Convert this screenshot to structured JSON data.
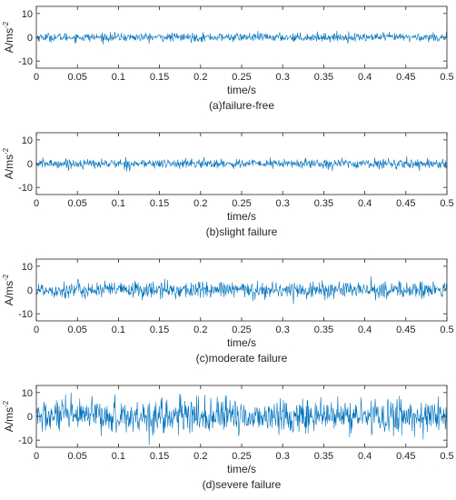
{
  "chart_data": [
    {
      "type": "line",
      "caption": "(a)failure-free",
      "xlabel": "time/s",
      "ylabel": "A/ms",
      "ylabel_exponent": "-2",
      "xlim": [
        0,
        0.5
      ],
      "ylim": [
        -13,
        13
      ],
      "xticks": [
        "0",
        "0.05",
        "0.1",
        "0.15",
        "0.2",
        "0.25",
        "0.3",
        "0.35",
        "0.4",
        "0.45",
        "0.5"
      ],
      "yticks": [
        "10",
        "0",
        "-10"
      ],
      "series": [
        {
          "amplitude_std": 0.9,
          "peak": 3,
          "color": "#0072BD"
        }
      ]
    },
    {
      "type": "line",
      "caption": "(b)slight failure",
      "xlabel": "time/s",
      "ylabel": "A/ms",
      "ylabel_exponent": "-2",
      "xlim": [
        0,
        0.5
      ],
      "ylim": [
        -13,
        13
      ],
      "xticks": [
        "0",
        "0.05",
        "0.1",
        "0.15",
        "0.2",
        "0.25",
        "0.3",
        "0.35",
        "0.4",
        "0.45",
        "0.5"
      ],
      "yticks": [
        "10",
        "0",
        "-10"
      ],
      "series": [
        {
          "amplitude_std": 1.0,
          "peak": 4,
          "color": "#0072BD"
        }
      ]
    },
    {
      "type": "line",
      "caption": "(c)moderate failure",
      "xlabel": "time/s",
      "ylabel": "A/ms",
      "ylabel_exponent": "-2",
      "xlim": [
        0,
        0.5
      ],
      "ylim": [
        -13,
        13
      ],
      "xticks": [
        "0",
        "0.05",
        "0.1",
        "0.15",
        "0.2",
        "0.25",
        "0.3",
        "0.35",
        "0.4",
        "0.45",
        "0.5"
      ],
      "yticks": [
        "10",
        "0",
        "-10"
      ],
      "series": [
        {
          "amplitude_std": 1.8,
          "peak": 7,
          "color": "#0072BD"
        }
      ]
    },
    {
      "type": "line",
      "caption": "(d)severe failure",
      "xlabel": "time/s",
      "ylabel": "A/ms",
      "ylabel_exponent": "-2",
      "xlim": [
        0,
        0.5
      ],
      "ylim": [
        -13,
        13
      ],
      "xticks": [
        "0",
        "0.05",
        "0.1",
        "0.15",
        "0.2",
        "0.25",
        "0.3",
        "0.35",
        "0.4",
        "0.45",
        "0.5"
      ],
      "yticks": [
        "10",
        "0",
        "-10"
      ],
      "series": [
        {
          "amplitude_std": 3.6,
          "peak": 12,
          "color": "#0072BD"
        }
      ]
    }
  ]
}
